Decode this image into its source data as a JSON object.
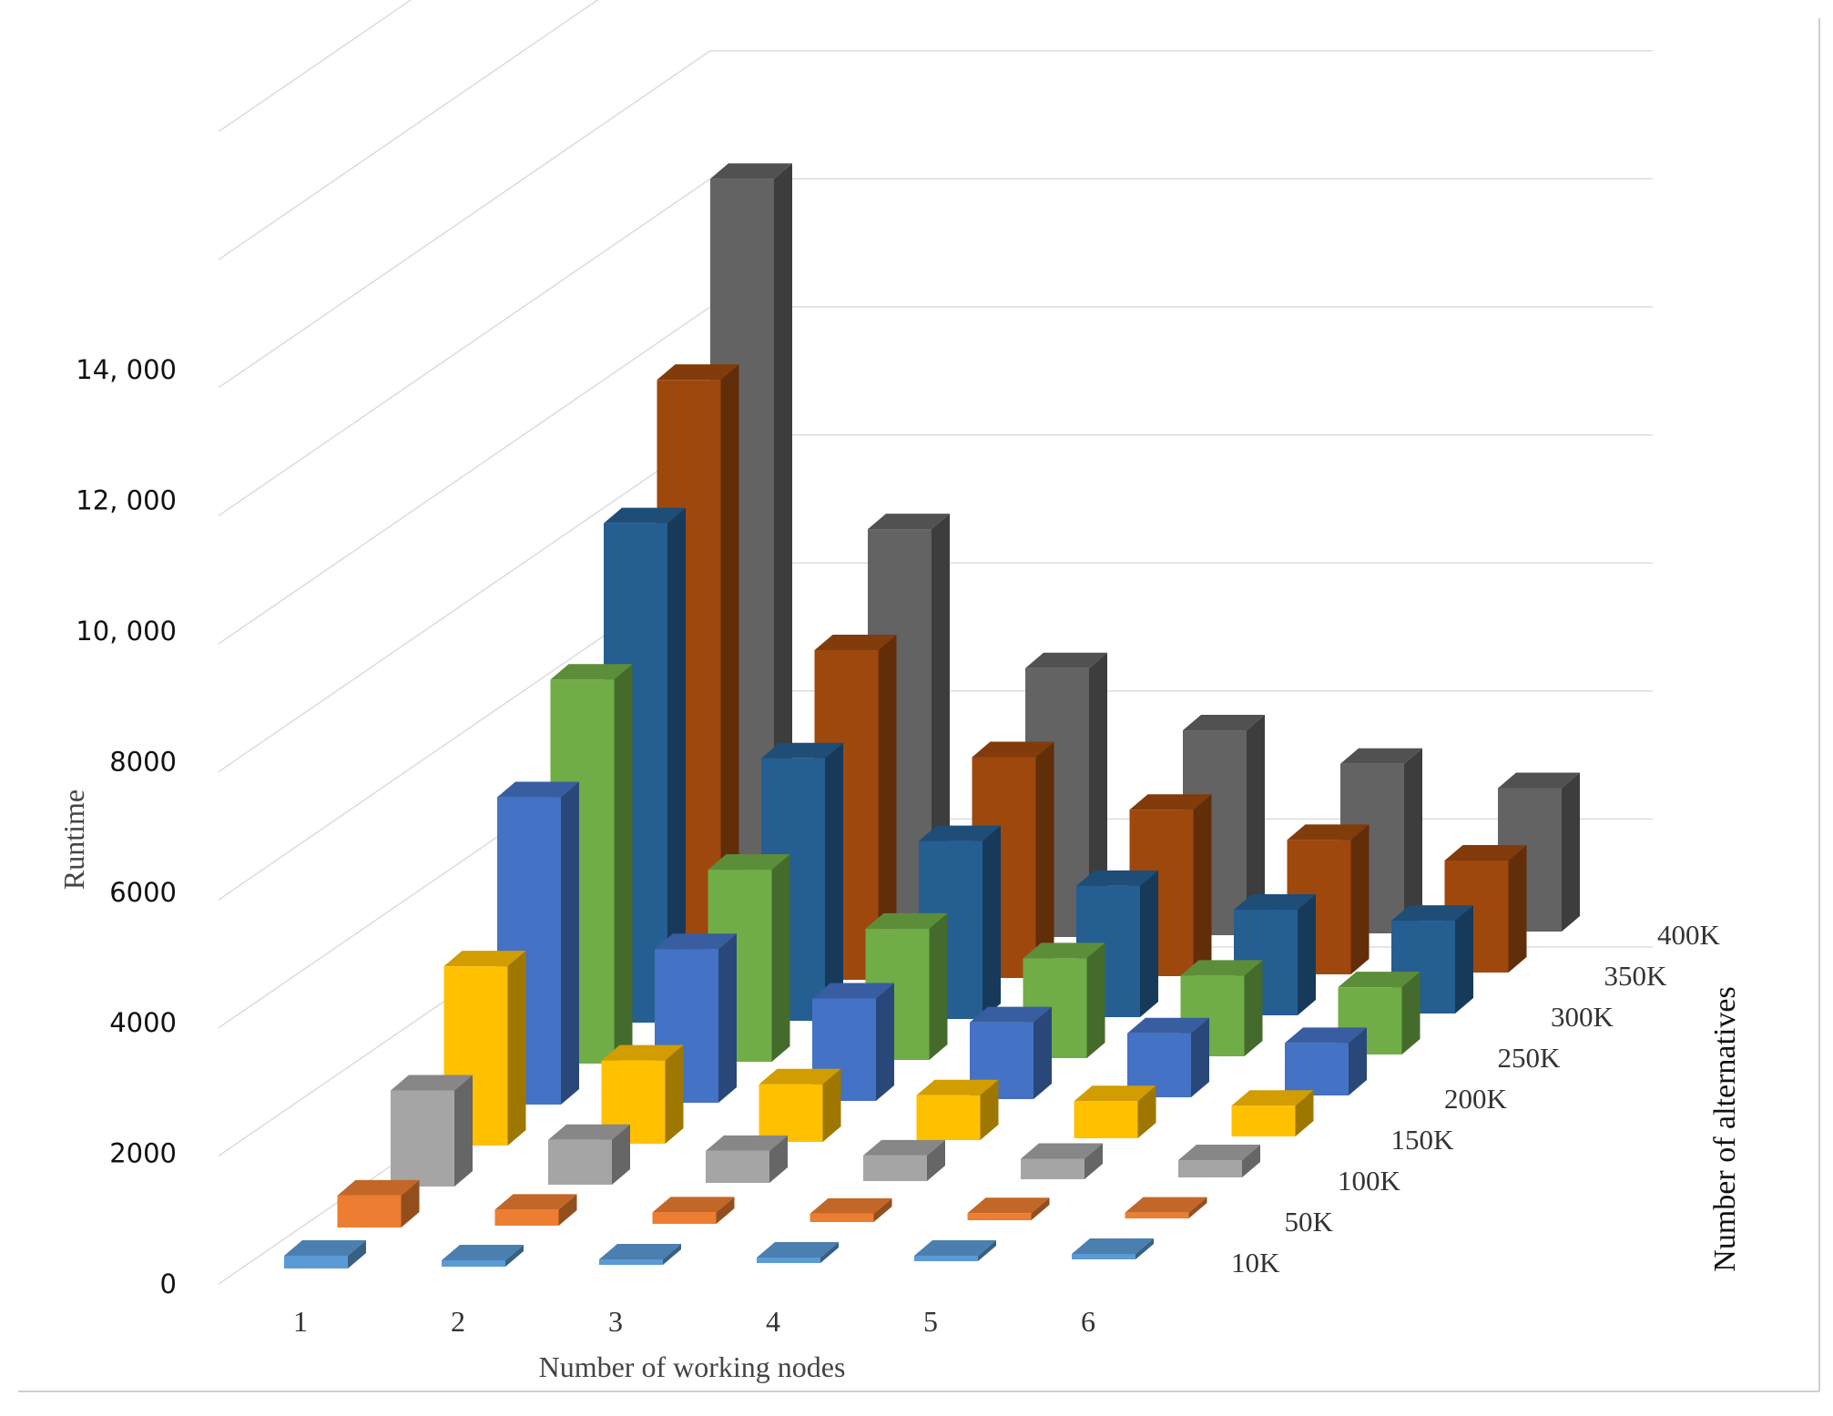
{
  "chart_data": {
    "type": "bar3d",
    "title": "",
    "xlabel": "Number of working nodes",
    "ylabel": "Runtime",
    "zlabel": "Number of alternatives",
    "x_categories": [
      "1",
      "2",
      "3",
      "4",
      "5",
      "6"
    ],
    "y_tick_labels": [
      "0",
      "2000",
      "4000",
      "6000",
      "8000",
      "10, 000",
      "12, 000",
      "14, 000"
    ],
    "ylim": [
      0,
      18000
    ],
    "grid": true,
    "series": [
      {
        "name": "10K",
        "color": "#5b9bd5",
        "values": [
          200,
          100,
          80,
          60,
          50,
          40
        ]
      },
      {
        "name": "50K",
        "color": "#ed7d31",
        "values": [
          500,
          250,
          180,
          130,
          110,
          90
        ]
      },
      {
        "name": "100K",
        "color": "#a5a5a5",
        "values": [
          1500,
          700,
          500,
          400,
          320,
          270
        ]
      },
      {
        "name": "150K",
        "color": "#ffc000",
        "values": [
          2800,
          1300,
          900,
          700,
          580,
          480
        ]
      },
      {
        "name": "200K",
        "color": "#4472c4",
        "values": [
          4800,
          2400,
          1600,
          1200,
          1000,
          820
        ]
      },
      {
        "name": "250K",
        "color": "#70ad47",
        "values": [
          6000,
          3000,
          2050,
          1560,
          1260,
          1050
        ]
      },
      {
        "name": "300K",
        "color": "#255e91",
        "values": [
          7800,
          4100,
          2780,
          2050,
          1650,
          1450
        ]
      },
      {
        "name": "350K",
        "color": "#9e480e",
        "values": [
          9400,
          5150,
          3450,
          2600,
          2100,
          1750
        ]
      },
      {
        "name": "400K",
        "color": "#636363",
        "values": [
          11900,
          6400,
          4200,
          3200,
          2650,
          2240
        ]
      }
    ]
  }
}
